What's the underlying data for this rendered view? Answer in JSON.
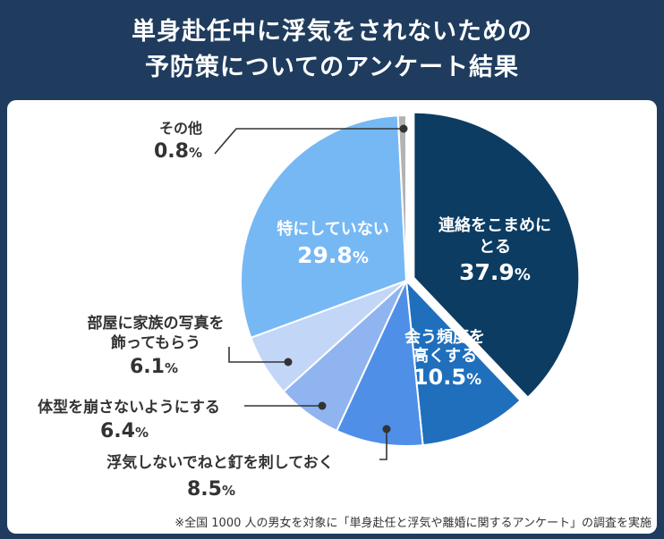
{
  "title": {
    "line1": "単身赴任中に浮気をされないための",
    "line2": "予防策についてのアンケート結果"
  },
  "chart_data": {
    "type": "pie",
    "unit": "%",
    "slices": [
      {
        "label_lines": [
          "連絡をこまめに",
          "とる"
        ],
        "value": 37.9,
        "color": "#0c3c62",
        "exploded": true
      },
      {
        "label_lines": [
          "会う頻度を",
          "高くする"
        ],
        "value": 10.5,
        "color": "#1f6fbd"
      },
      {
        "label_lines": [
          "浮気しないでねと釘を刺しておく"
        ],
        "value": 8.5,
        "color": "#4f8fe8"
      },
      {
        "label_lines": [
          "体型を崩さないようにする"
        ],
        "value": 6.4,
        "color": "#8fb4f0"
      },
      {
        "label_lines": [
          "部屋に家族の写真を",
          "飾ってもらう"
        ],
        "value": 6.1,
        "color": "#c2d6f7"
      },
      {
        "label_lines": [
          "特にしていない"
        ],
        "value": 29.8,
        "color": "#76b8f4"
      },
      {
        "label_lines": [
          "その他"
        ],
        "value": 0.8,
        "color": "#b3b3b3"
      }
    ]
  },
  "footnote": "※全国 1000 人の男女を対象に「単身赴任と浮気や離婚に関するアンケート」の調査を実施"
}
